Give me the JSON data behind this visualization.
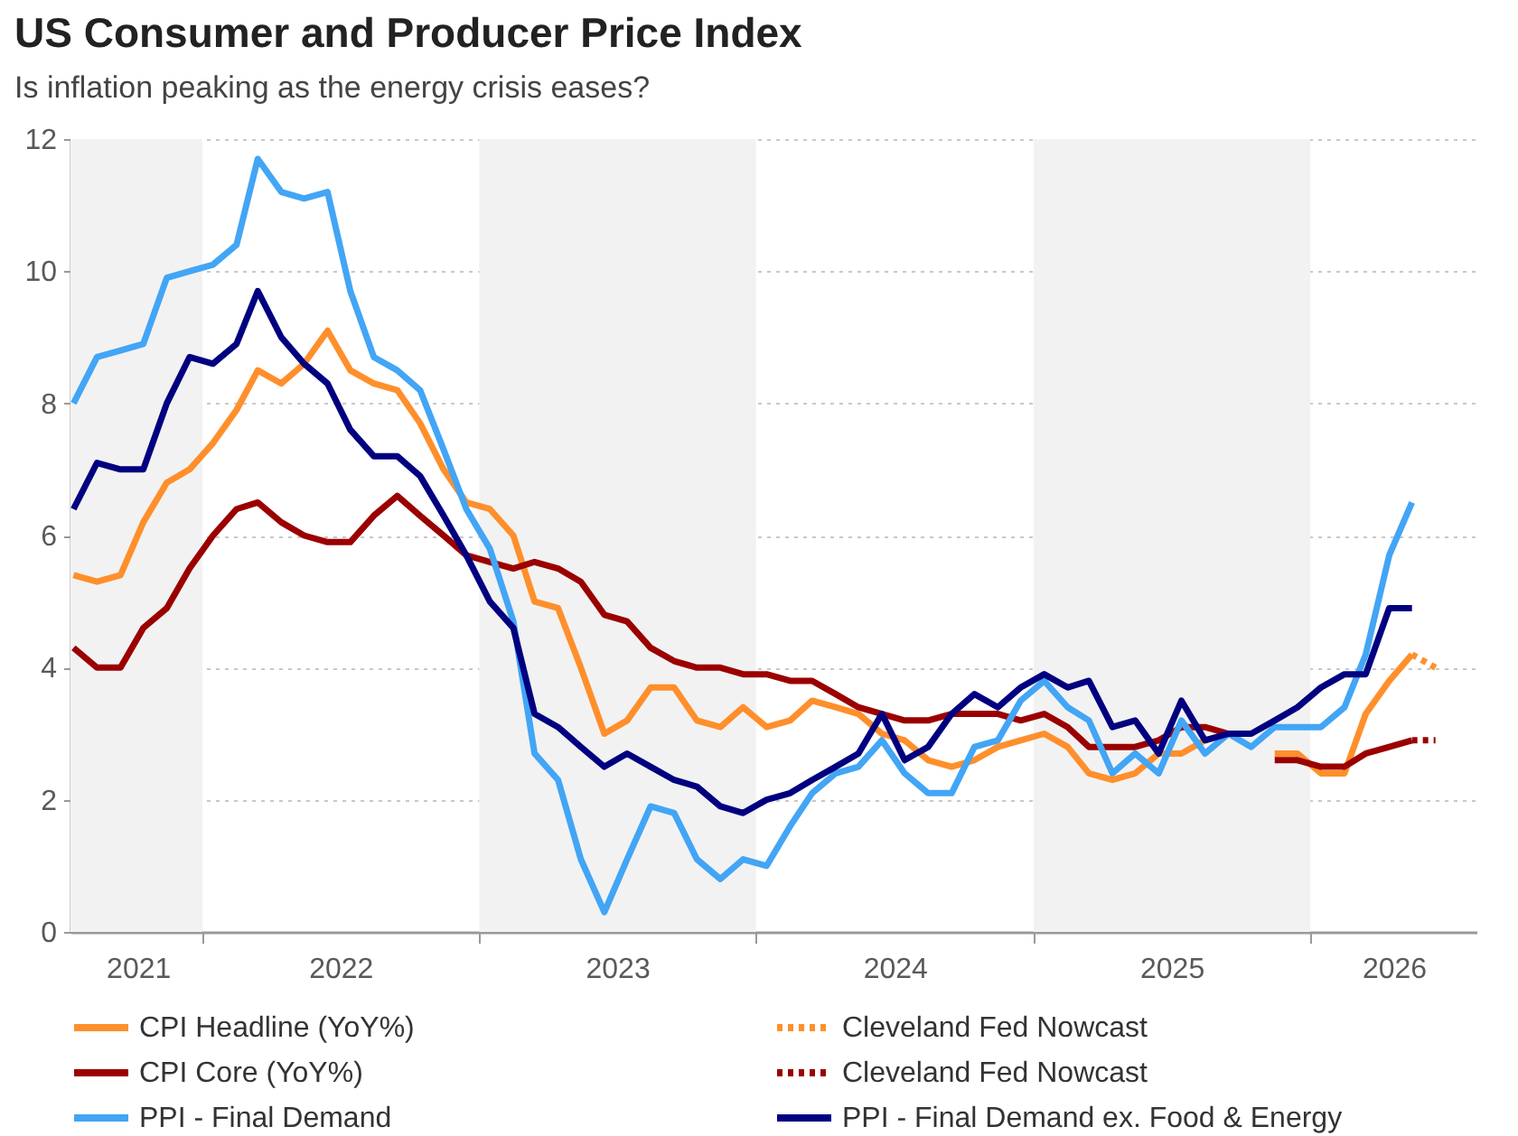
{
  "chart_data": {
    "type": "line",
    "title": "US Consumer and Producer Price Index",
    "subtitle": "Is inflation peaking as the energy crisis eases?",
    "x": [
      "2021-07-15",
      "2021-08-15",
      "2021-09-15",
      "2021-10-15",
      "2021-11-15",
      "2021-12-15",
      "2022-01-15",
      "2022-02-15",
      "2022-03-15",
      "2022-04-15",
      "2022-05-15",
      "2022-06-15",
      "2022-07-15",
      "2022-08-15",
      "2022-09-15",
      "2022-10-15",
      "2022-11-15",
      "2022-12-15",
      "2023-01-15",
      "2023-02-15",
      "2023-03-15",
      "2023-04-15",
      "2023-05-15",
      "2023-06-15",
      "2023-07-15",
      "2023-08-15",
      "2023-09-15",
      "2023-10-15",
      "2023-11-15",
      "2023-12-15",
      "2024-01-15",
      "2024-02-15",
      "2024-03-15",
      "2024-04-15",
      "2024-05-15",
      "2024-06-15",
      "2024-07-15",
      "2024-08-15",
      "2024-09-15",
      "2024-10-15",
      "2024-11-15",
      "2024-12-15",
      "2025-01-15",
      "2025-02-15",
      "2025-03-15",
      "2025-04-15",
      "2025-05-15",
      "2025-06-15",
      "2025-07-15",
      "2025-08-15",
      "2025-09-15",
      "2025-10-15",
      "2025-11-15",
      "2025-12-15",
      "2026-01-15",
      "2026-02-15",
      "2026-03-15",
      "2026-04-15",
      "2026-05-15"
    ],
    "series": [
      {
        "name": "CPI Headline (YoY%)",
        "color": "#ff8f2b",
        "values": [
          5.4,
          5.3,
          5.4,
          6.2,
          6.8,
          7.0,
          7.4,
          7.9,
          8.5,
          8.3,
          8.6,
          9.1,
          8.5,
          8.3,
          8.2,
          7.7,
          7.0,
          6.5,
          6.4,
          6.0,
          5.0,
          4.9,
          4.0,
          3.0,
          3.2,
          3.7,
          3.7,
          3.2,
          3.1,
          3.4,
          3.1,
          3.2,
          3.5,
          3.4,
          3.3,
          3.0,
          2.9,
          2.6,
          2.5,
          2.6,
          2.8,
          2.9,
          3.0,
          2.8,
          2.4,
          2.3,
          2.4,
          2.7,
          2.7,
          2.9,
          3.0,
          null,
          2.7,
          2.7,
          2.4,
          2.4,
          3.3,
          3.8,
          4.2
        ]
      },
      {
        "name": "CPI Core (YoY%)",
        "color": "#9b0000",
        "values": [
          4.3,
          4.0,
          4.0,
          4.6,
          4.9,
          5.5,
          6.0,
          6.4,
          6.5,
          6.2,
          6.0,
          5.9,
          5.9,
          6.3,
          6.6,
          6.3,
          6.0,
          5.7,
          5.6,
          5.5,
          5.6,
          5.5,
          5.3,
          4.8,
          4.7,
          4.3,
          4.1,
          4.0,
          4.0,
          3.9,
          3.9,
          3.8,
          3.8,
          3.6,
          3.4,
          3.3,
          3.2,
          3.2,
          3.3,
          3.3,
          3.3,
          3.2,
          3.3,
          3.1,
          2.8,
          2.8,
          2.8,
          2.9,
          3.1,
          3.1,
          3.0,
          null,
          2.6,
          2.6,
          2.5,
          2.5,
          2.7,
          2.8,
          2.9
        ]
      },
      {
        "name": "PPI - Final Demand",
        "color": "#42a5f5",
        "values": [
          8.0,
          8.7,
          8.8,
          8.9,
          9.9,
          10.0,
          10.1,
          10.4,
          11.7,
          11.2,
          11.1,
          11.2,
          9.7,
          8.7,
          8.5,
          8.2,
          7.3,
          6.4,
          5.8,
          4.7,
          2.7,
          2.3,
          1.1,
          0.3,
          1.1,
          1.9,
          1.8,
          1.1,
          0.8,
          1.1,
          1.0,
          1.6,
          2.1,
          2.4,
          2.5,
          2.9,
          2.4,
          2.1,
          2.1,
          2.8,
          2.9,
          3.5,
          3.8,
          3.4,
          3.2,
          2.4,
          2.7,
          2.4,
          3.2,
          2.7,
          3.0,
          2.8,
          3.1,
          3.1,
          3.1,
          3.4,
          4.2,
          5.7,
          6.5
        ]
      },
      {
        "name": "Cleveland Fed Nowcast",
        "color": "#ff8f2b",
        "line_style": "dotted",
        "x": [
          "2026-05-15",
          "2026-06-15"
        ],
        "values": [
          4.2,
          4.0
        ]
      },
      {
        "name": "Cleveland Fed Nowcast",
        "color": "#9b0000",
        "line_style": "dotted",
        "x": [
          "2026-05-15",
          "2026-06-15"
        ],
        "values": [
          2.9,
          2.9
        ]
      },
      {
        "name": "PPI - Final Demand ex. Food & Energy",
        "color": "#000080",
        "values": [
          6.4,
          7.1,
          7.0,
          7.0,
          8.0,
          8.7,
          8.6,
          8.9,
          9.7,
          9.0,
          8.6,
          8.3,
          7.6,
          7.2,
          7.2,
          6.9,
          6.3,
          5.7,
          5.0,
          4.6,
          3.3,
          3.1,
          2.8,
          2.5,
          2.7,
          2.5,
          2.3,
          2.2,
          1.9,
          1.8,
          2.0,
          2.1,
          2.3,
          2.5,
          2.7,
          3.3,
          2.6,
          2.8,
          3.3,
          3.6,
          3.4,
          3.7,
          3.9,
          3.7,
          3.8,
          3.1,
          3.2,
          2.7,
          3.5,
          2.9,
          3.0,
          3.0,
          3.2,
          3.4,
          3.7,
          3.9,
          3.9,
          4.9,
          4.9
        ]
      }
    ],
    "xlim": [
      "2021-07-11",
      "2026-08-08"
    ],
    "xticks": [
      {
        "value": "2021-10-08",
        "label": "2021"
      },
      {
        "value": "2022-01-01",
        "label": null
      },
      {
        "value": "2022-07-02",
        "label": "2022"
      },
      {
        "value": "2023-01-01",
        "label": null
      },
      {
        "value": "2023-07-02",
        "label": "2023"
      },
      {
        "value": "2024-01-01",
        "label": null
      },
      {
        "value": "2024-07-02",
        "label": "2024"
      },
      {
        "value": "2025-01-01",
        "label": null
      },
      {
        "value": "2025-07-02",
        "label": "2025"
      },
      {
        "value": "2026-01-01",
        "label": null
      },
      {
        "value": "2026-04-21",
        "label": "2026"
      }
    ],
    "ylim": [
      0,
      12
    ],
    "yticks": [
      0,
      2,
      4,
      6,
      8,
      10,
      12
    ],
    "bands": [
      {
        "axis": "x",
        "from": "2021-07-11",
        "to": "2022-01-01",
        "color": "#f2f2f2"
      },
      {
        "axis": "x",
        "from": "2023-01-01",
        "to": "2024-01-01",
        "color": "#f2f2f2"
      },
      {
        "axis": "x",
        "from": "2025-01-01",
        "to": "2026-01-01",
        "color": "#f2f2f2"
      }
    ],
    "grid": "y",
    "legend": "bottom",
    "marker": "none",
    "line_style": "solid"
  }
}
